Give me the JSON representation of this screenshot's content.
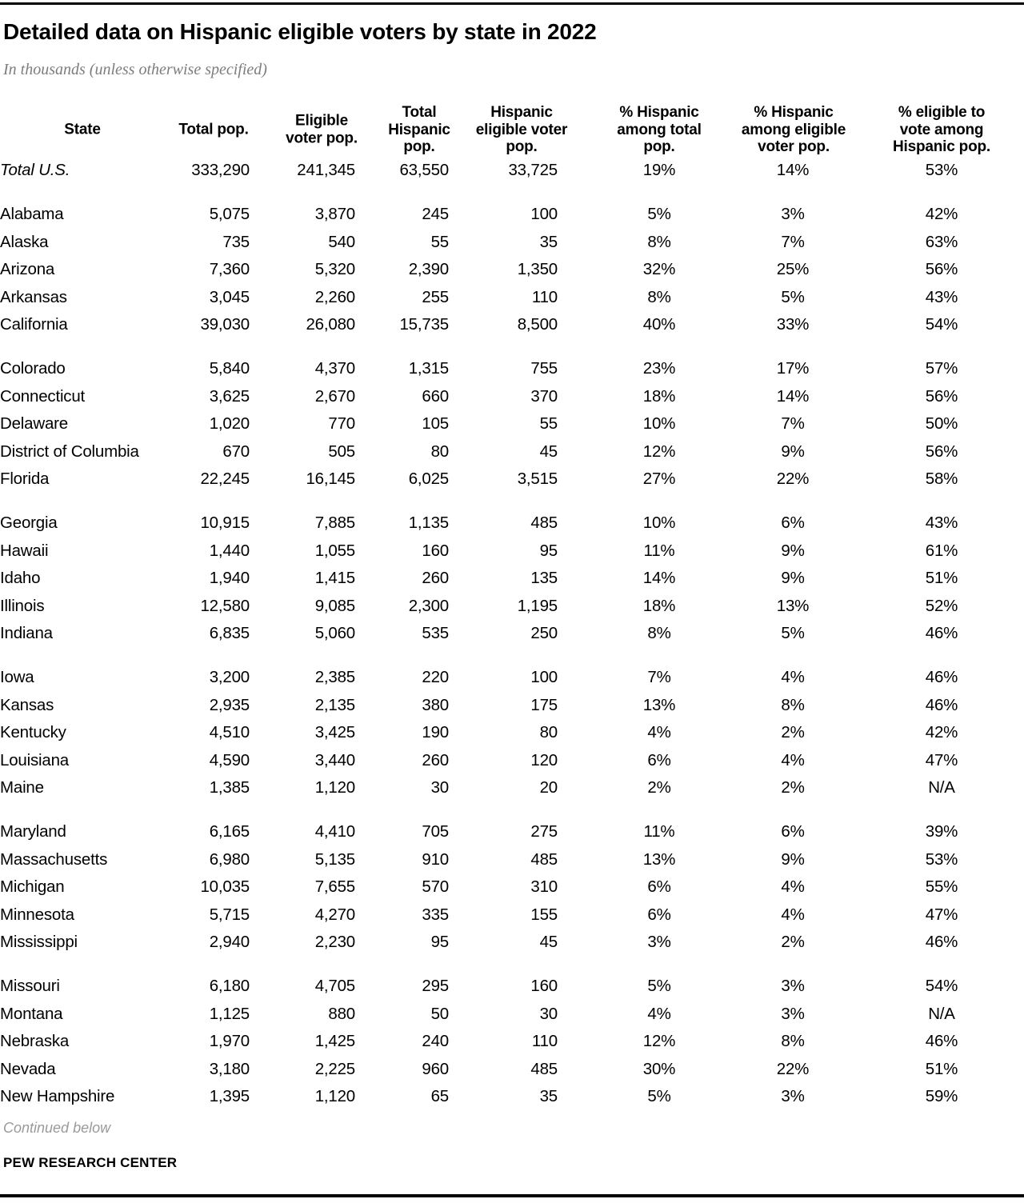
{
  "chart_data": {
    "type": "table",
    "title": "Detailed data on Hispanic eligible voters by state in 2022",
    "subtitle": "In thousands (unless otherwise specified)",
    "columns": [
      {
        "label": "State",
        "lines": [
          "State"
        ]
      },
      {
        "label": "Total pop.",
        "lines": [
          "Total pop."
        ]
      },
      {
        "label": "Eligible voter pop.",
        "lines": [
          "Eligible",
          "voter pop."
        ]
      },
      {
        "label": "Total Hispanic pop.",
        "lines": [
          "Total",
          "Hispanic",
          "pop."
        ]
      },
      {
        "label": "Hispanic eligible voter pop.",
        "lines": [
          "Hispanic",
          "eligible voter",
          "pop."
        ]
      },
      {
        "label": "% Hispanic among total pop.",
        "lines": [
          "% Hispanic",
          "among total",
          "pop."
        ]
      },
      {
        "label": "% Hispanic among eligible voter pop.",
        "lines": [
          "% Hispanic",
          "among eligible",
          "voter pop."
        ]
      },
      {
        "label": "% eligible to vote among Hispanic pop.",
        "lines": [
          "% eligible to",
          "vote among",
          "Hispanic pop."
        ]
      }
    ],
    "total_row": [
      "Total U.S.",
      "333,290",
      "241,345",
      "63,550",
      "33,725",
      "19%",
      "14%",
      "53%"
    ],
    "rows": [
      [
        "Alabama",
        "5,075",
        "3,870",
        "245",
        "100",
        "5%",
        "3%",
        "42%"
      ],
      [
        "Alaska",
        "735",
        "540",
        "55",
        "35",
        "8%",
        "7%",
        "63%"
      ],
      [
        "Arizona",
        "7,360",
        "5,320",
        "2,390",
        "1,350",
        "32%",
        "25%",
        "56%"
      ],
      [
        "Arkansas",
        "3,045",
        "2,260",
        "255",
        "110",
        "8%",
        "5%",
        "43%"
      ],
      [
        "California",
        "39,030",
        "26,080",
        "15,735",
        "8,500",
        "40%",
        "33%",
        "54%"
      ],
      [
        "Colorado",
        "5,840",
        "4,370",
        "1,315",
        "755",
        "23%",
        "17%",
        "57%"
      ],
      [
        "Connecticut",
        "3,625",
        "2,670",
        "660",
        "370",
        "18%",
        "14%",
        "56%"
      ],
      [
        "Delaware",
        "1,020",
        "770",
        "105",
        "55",
        "10%",
        "7%",
        "50%"
      ],
      [
        "District of Columbia",
        "670",
        "505",
        "80",
        "45",
        "12%",
        "9%",
        "56%"
      ],
      [
        "Florida",
        "22,245",
        "16,145",
        "6,025",
        "3,515",
        "27%",
        "22%",
        "58%"
      ],
      [
        "Georgia",
        "10,915",
        "7,885",
        "1,135",
        "485",
        "10%",
        "6%",
        "43%"
      ],
      [
        "Hawaii",
        "1,440",
        "1,055",
        "160",
        "95",
        "11%",
        "9%",
        "61%"
      ],
      [
        "Idaho",
        "1,940",
        "1,415",
        "260",
        "135",
        "14%",
        "9%",
        "51%"
      ],
      [
        "Illinois",
        "12,580",
        "9,085",
        "2,300",
        "1,195",
        "18%",
        "13%",
        "52%"
      ],
      [
        "Indiana",
        "6,835",
        "5,060",
        "535",
        "250",
        "8%",
        "5%",
        "46%"
      ],
      [
        "Iowa",
        "3,200",
        "2,385",
        "220",
        "100",
        "7%",
        "4%",
        "46%"
      ],
      [
        "Kansas",
        "2,935",
        "2,135",
        "380",
        "175",
        "13%",
        "8%",
        "46%"
      ],
      [
        "Kentucky",
        "4,510",
        "3,425",
        "190",
        "80",
        "4%",
        "2%",
        "42%"
      ],
      [
        "Louisiana",
        "4,590",
        "3,440",
        "260",
        "120",
        "6%",
        "4%",
        "47%"
      ],
      [
        "Maine",
        "1,385",
        "1,120",
        "30",
        "20",
        "2%",
        "2%",
        "N/A"
      ],
      [
        "Maryland",
        "6,165",
        "4,410",
        "705",
        "275",
        "11%",
        "6%",
        "39%"
      ],
      [
        "Massachusetts",
        "6,980",
        "5,135",
        "910",
        "485",
        "13%",
        "9%",
        "53%"
      ],
      [
        "Michigan",
        "10,035",
        "7,655",
        "570",
        "310",
        "6%",
        "4%",
        "55%"
      ],
      [
        "Minnesota",
        "5,715",
        "4,270",
        "335",
        "155",
        "6%",
        "4%",
        "47%"
      ],
      [
        "Mississippi",
        "2,940",
        "2,230",
        "95",
        "45",
        "3%",
        "2%",
        "46%"
      ],
      [
        "Missouri",
        "6,180",
        "4,705",
        "295",
        "160",
        "5%",
        "3%",
        "54%"
      ],
      [
        "Montana",
        "1,125",
        "880",
        "50",
        "30",
        "4%",
        "3%",
        "N/A"
      ],
      [
        "Nebraska",
        "1,970",
        "1,425",
        "240",
        "110",
        "12%",
        "8%",
        "46%"
      ],
      [
        "Nevada",
        "3,180",
        "2,225",
        "960",
        "485",
        "30%",
        "22%",
        "51%"
      ],
      [
        "New Hampshire",
        "1,395",
        "1,120",
        "65",
        "35",
        "5%",
        "3%",
        "59%"
      ]
    ],
    "layout": {
      "rows_per_group": 5,
      "grid": "off"
    }
  },
  "footer": {
    "continued_note": "Continued below",
    "source": "PEW RESEARCH CENTER"
  },
  "colors": {
    "text": "#000000",
    "subtitle_gray": "#7d7d7d",
    "note_gray": "#9a9a9a",
    "rule_black": "#000000"
  }
}
